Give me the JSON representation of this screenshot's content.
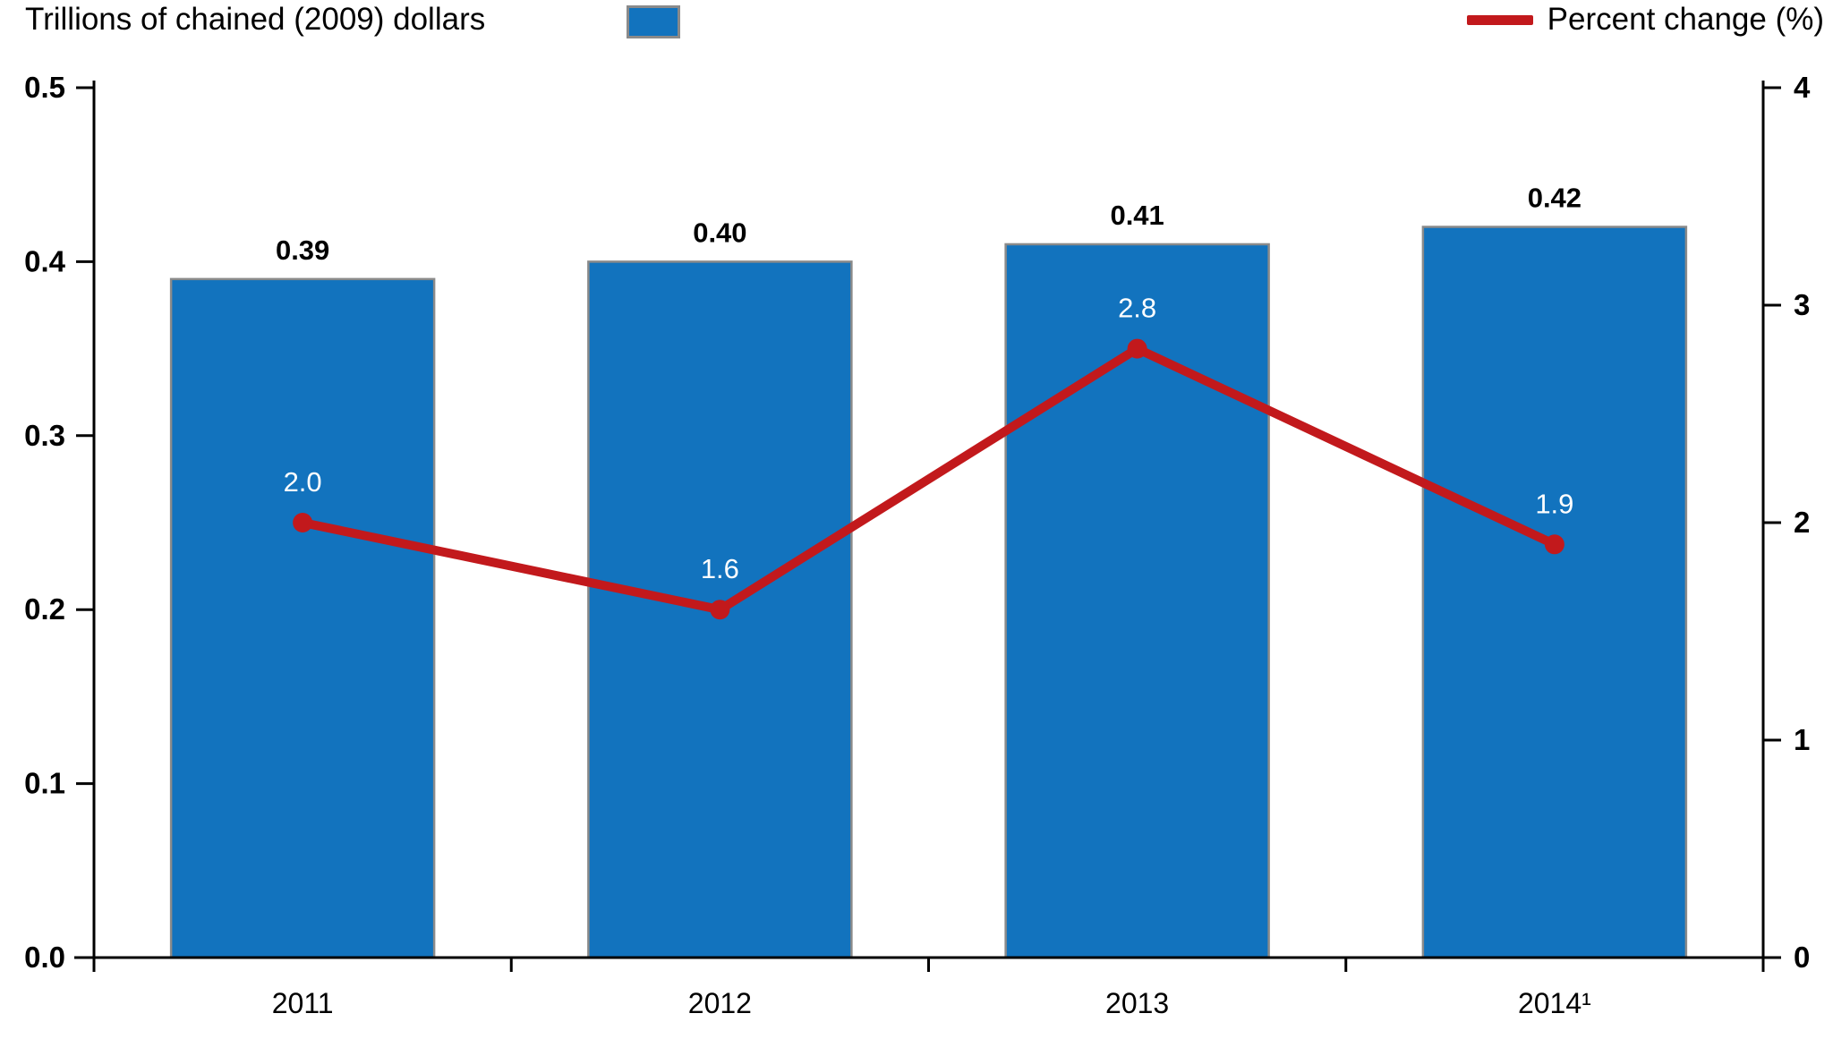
{
  "legend": {
    "bars_label": "Trillions of chained (2009) dollars",
    "line_label": "Percent change (%)"
  },
  "colors": {
    "bar_fill": "#1273BE",
    "bar_border": "#8A8A8A",
    "line": "#C2191C",
    "point_label": "#FFFFFF",
    "bar_label": "#000000",
    "axis": "#000000",
    "tick_label": "#000000"
  },
  "chart_data": {
    "type": "bar",
    "subtype": "combo-bar-line",
    "categories": [
      "2011",
      "2012",
      "2013",
      "2014¹"
    ],
    "series": [
      {
        "name": "Trillions of chained (2009) dollars",
        "type": "bar",
        "axis": "left",
        "values": [
          0.39,
          0.4,
          0.41,
          0.42
        ],
        "labels": [
          "0.39",
          "0.40",
          "0.41",
          "0.42"
        ]
      },
      {
        "name": "Percent change (%)",
        "type": "line",
        "axis": "right",
        "values": [
          2.0,
          1.6,
          2.8,
          1.9
        ],
        "labels": [
          "2.0",
          "1.6",
          "2.8",
          "1.9"
        ]
      }
    ],
    "left_axis": {
      "min": 0,
      "max": 0.5,
      "tick_labels": [
        "0.5",
        "0.4",
        "0.3",
        "0.2",
        "0.1",
        "0.0"
      ],
      "tick_values": [
        0.5,
        0.4,
        0.3,
        0.2,
        0.1,
        0.0
      ]
    },
    "right_axis": {
      "min": 0,
      "max": 4,
      "tick_labels": [
        "4",
        "3",
        "2",
        "1",
        "0"
      ],
      "tick_values": [
        4,
        3,
        2,
        1,
        0
      ]
    },
    "title": "",
    "xlabel": "",
    "ylabel_left": "Trillions of chained (2009) dollars",
    "ylabel_right": "Percent change (%)",
    "grid": false,
    "legend_position": "top"
  }
}
